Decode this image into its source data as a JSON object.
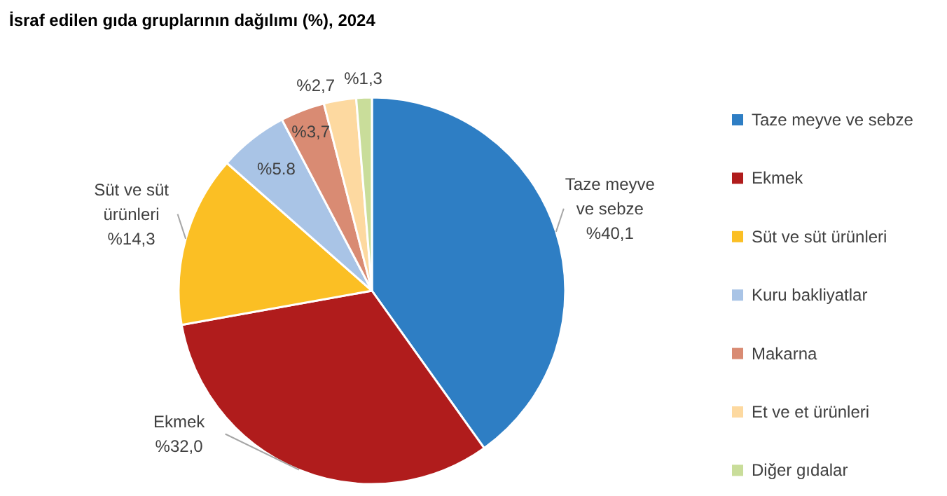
{
  "chart_data": {
    "type": "pie",
    "title": "İsraf edilen gıda gruplarının dağılımı (%), 2024",
    "categories": [
      "Taze meyve ve sebze",
      "Ekmek",
      "Süt ve süt ürünleri",
      "Kuru bakliyatlar",
      "Makarna",
      "Et ve et ürünleri",
      "Diğer gıdalar"
    ],
    "values": [
      40.1,
      32.0,
      14.3,
      5.8,
      3.7,
      2.7,
      1.3
    ],
    "colors": [
      "#2e7ec4",
      "#b01c1c",
      "#fbbf24",
      "#a9c4e6",
      "#d98b73",
      "#fdd9a0",
      "#c9dd9a"
    ],
    "value_labels": [
      "%40,1",
      "%32,0",
      "%14,3",
      "%5.8",
      "%3,7",
      "%2,7",
      "%1,3"
    ],
    "legend": "right"
  }
}
